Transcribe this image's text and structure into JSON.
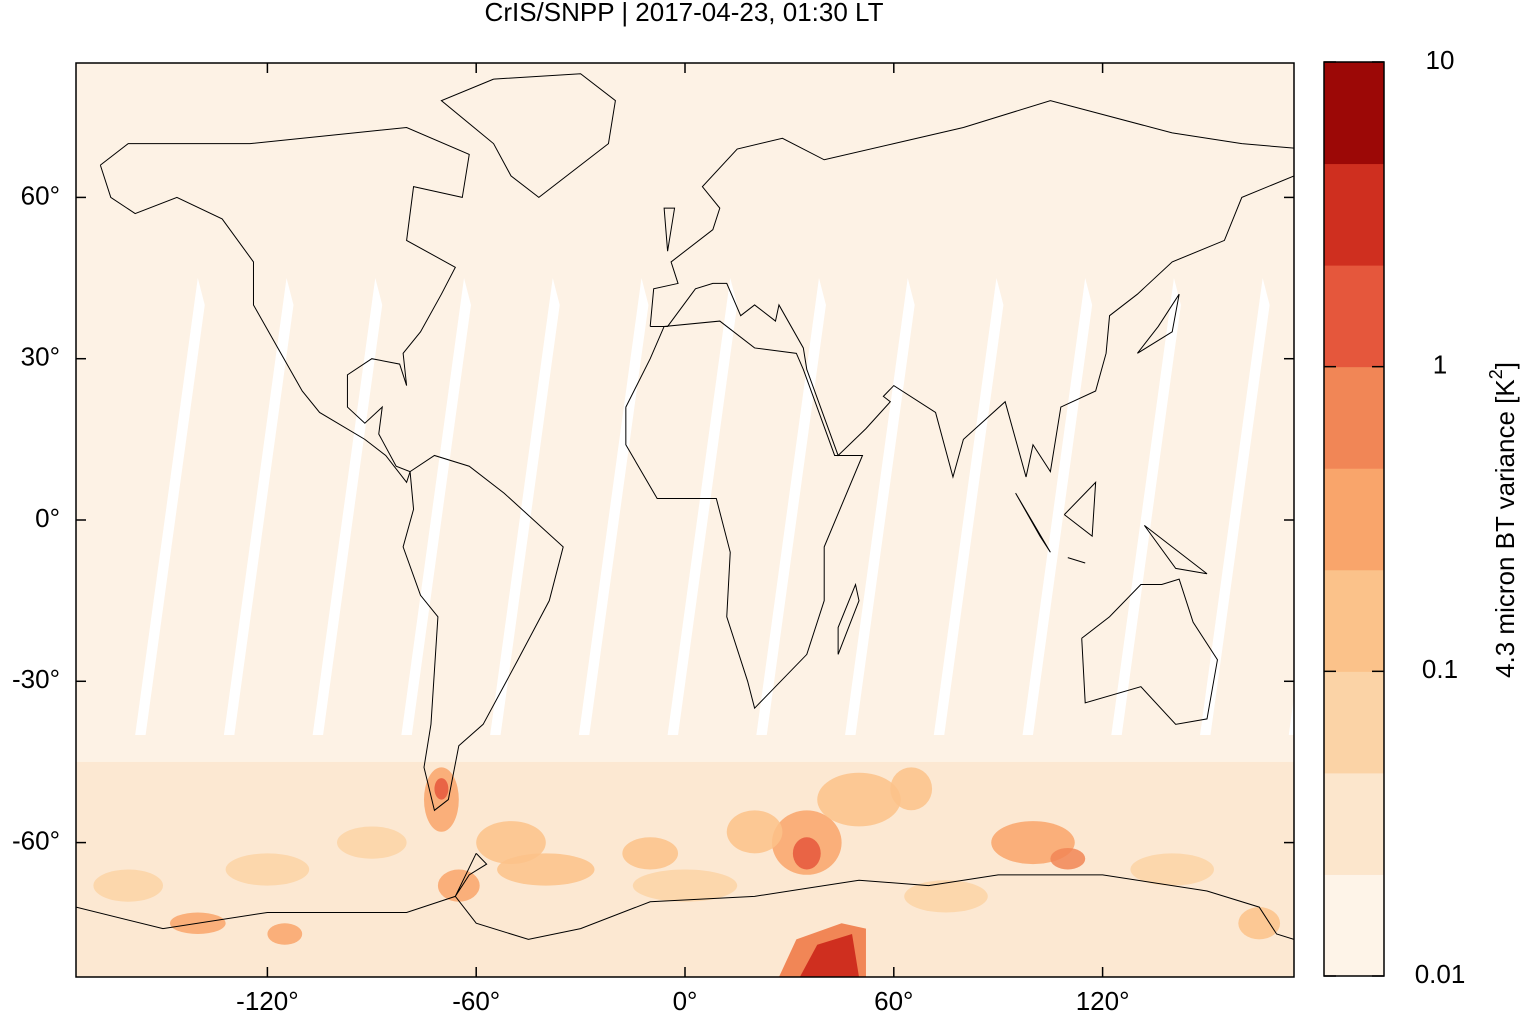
{
  "chart_data": {
    "type": "map",
    "title": "CrIS/SNPP | 2017-04-23, 01:30 LT",
    "xlim": [
      -175,
      175
    ],
    "xticks": [
      {
        "value": -120,
        "label": "-120°"
      },
      {
        "value": -60,
        "label": "-60°"
      },
      {
        "value": 0,
        "label": "0°"
      },
      {
        "value": 60,
        "label": "60°"
      },
      {
        "value": 120,
        "label": "120°"
      }
    ],
    "ylim": [
      -85,
      85
    ],
    "yticks": [
      {
        "value": -60,
        "label": "-60°"
      },
      {
        "value": -30,
        "label": "-30°"
      },
      {
        "value": 0,
        "label": "0°"
      },
      {
        "value": 30,
        "label": "30°"
      },
      {
        "value": 60,
        "label": "60°"
      }
    ],
    "colorbar": {
      "log_scale": true,
      "lim": [
        0.01,
        10
      ],
      "ticks": [
        0.01,
        0.1,
        1,
        10
      ],
      "colors": [
        "#fef4e8",
        "#fce6cc",
        "#fbd3a6",
        "#fbc28a",
        "#f9a56b",
        "#f18656",
        "#e5573c",
        "#cf2f1f",
        "#9c0806"
      ],
      "label": "4.3 micron BT variance [K",
      "label_sup": "2",
      "label_end": "]"
    }
  }
}
